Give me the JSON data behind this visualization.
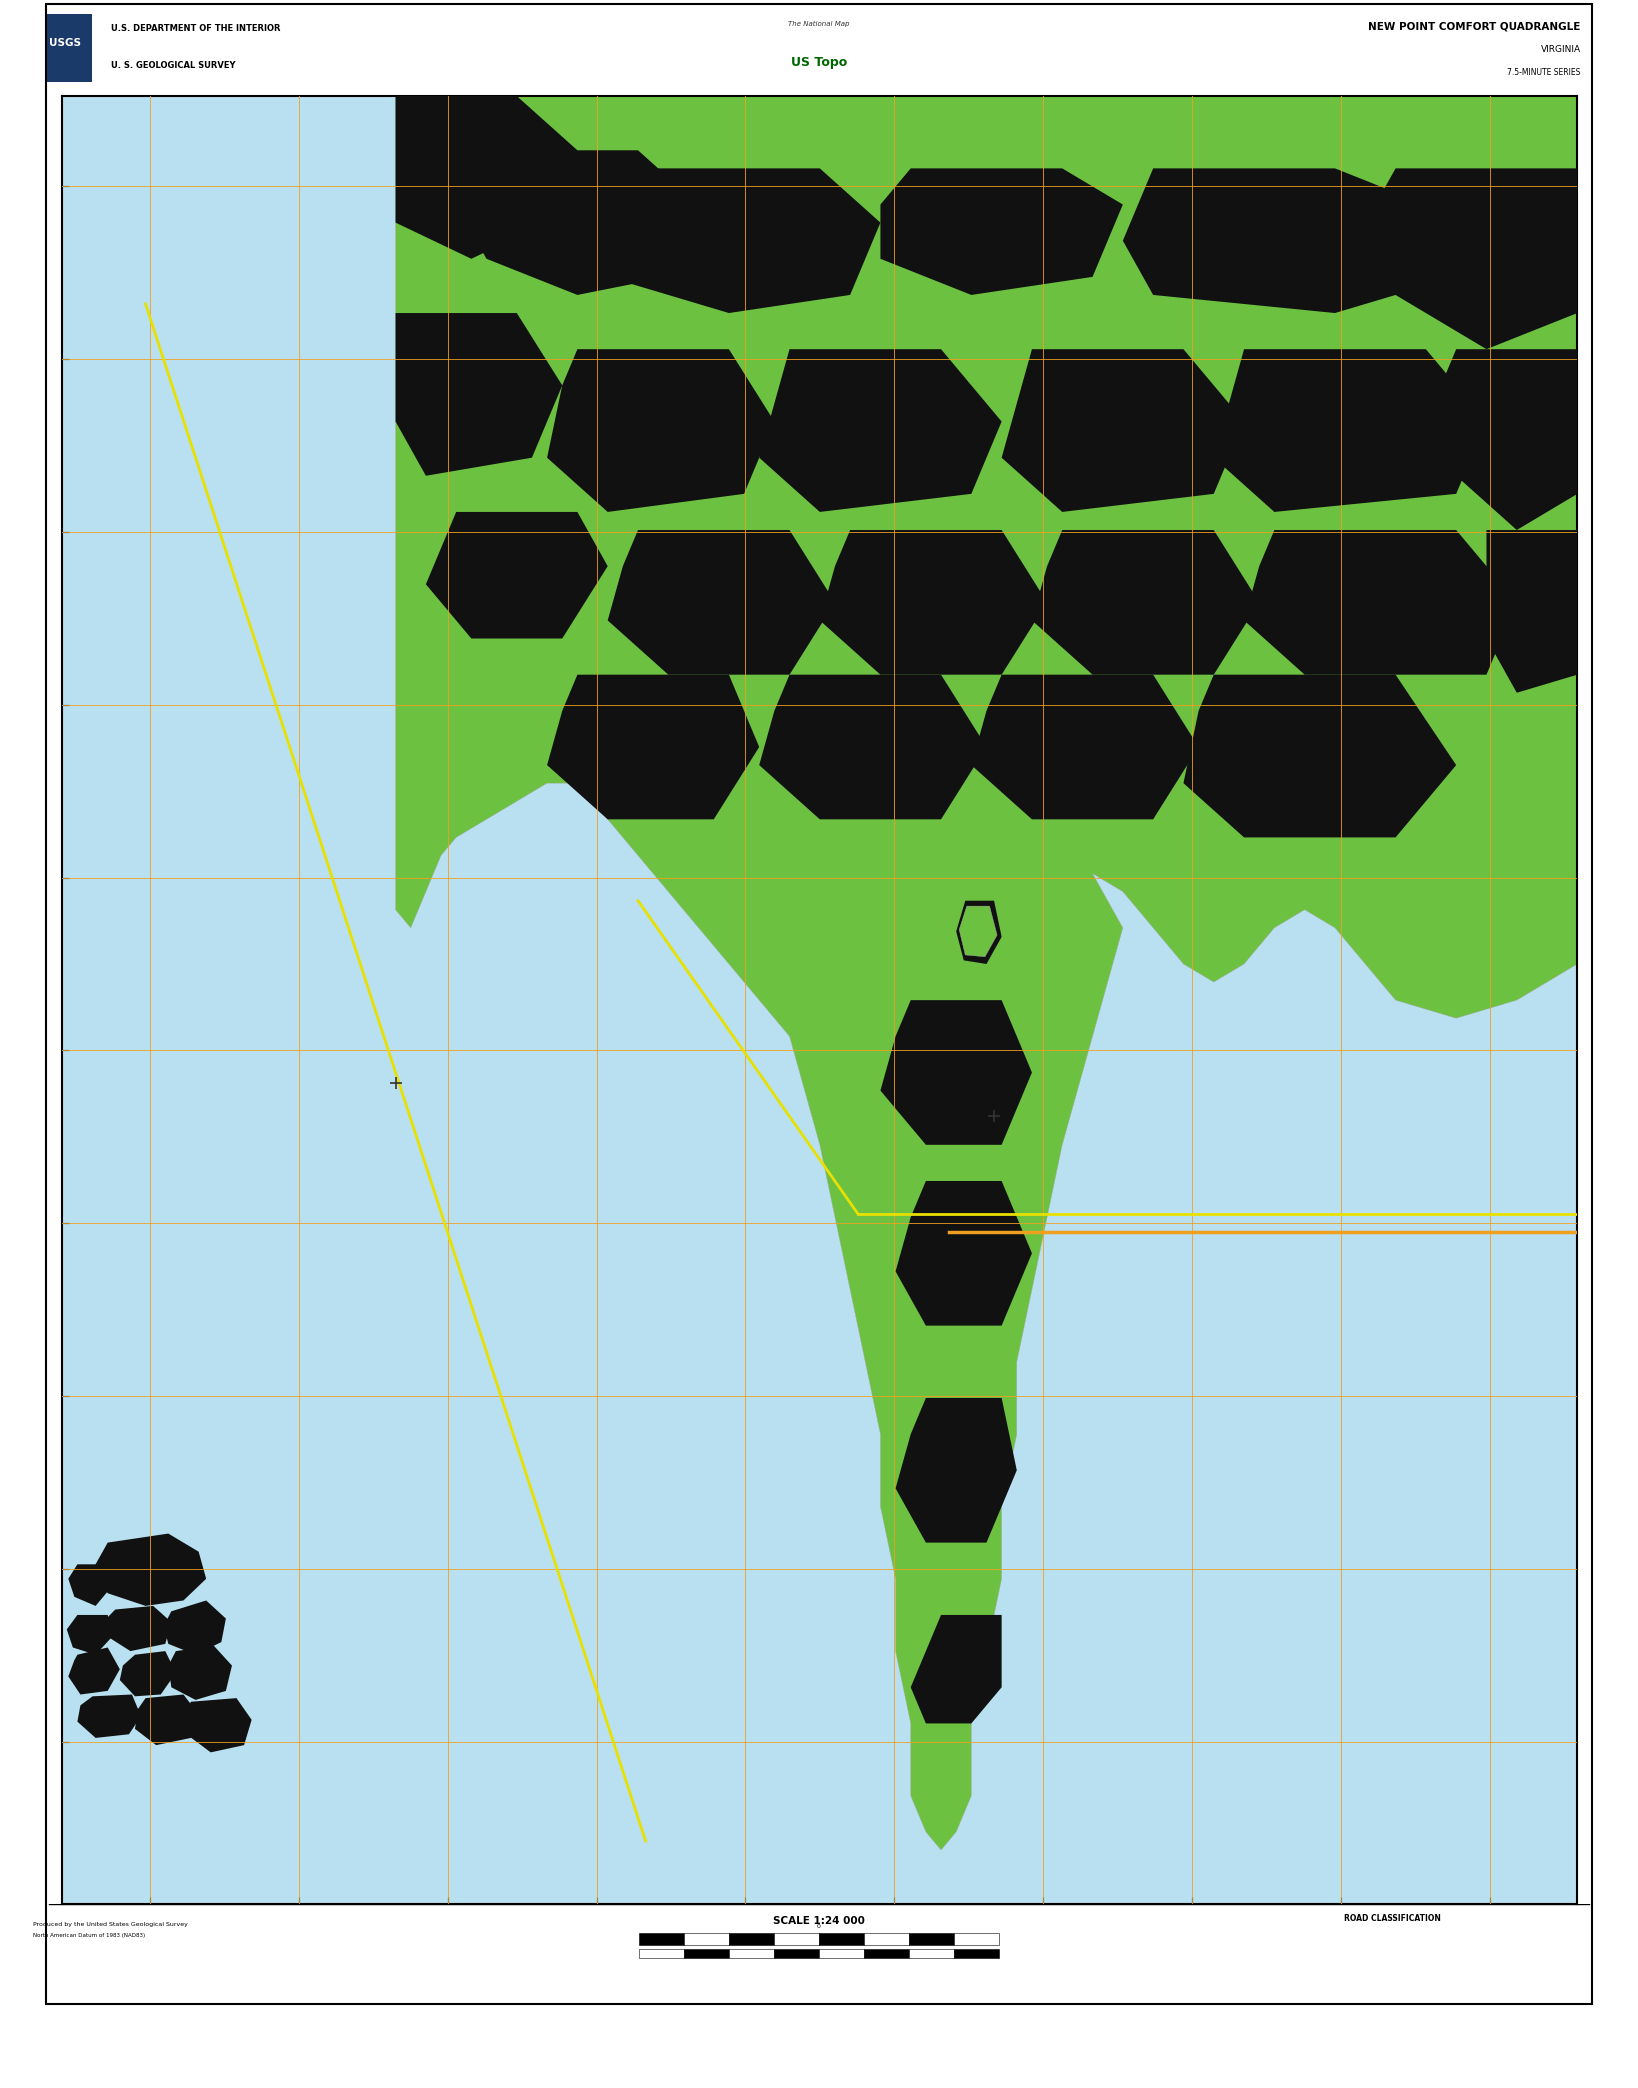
{
  "title_line1": "NEW POINT COMFORT QUADRANGLE",
  "title_line2": "VIRGINIA",
  "title_line3": "7.5-MINUTE SERIES",
  "header_left_line1": "U.S. DEPARTMENT OF THE INTERIOR",
  "header_left_line2": "U. S. GEOLOGICAL SURVEY",
  "scale_text": "SCALE 1:24 000",
  "map_bg_color": "#b8e0f0",
  "land_green": "#6dc141",
  "land_dark": "#111111",
  "land_outline": "#888888",
  "grid_orange": "#f0a020",
  "grid_yellow": "#e8e000",
  "white": "#ffffff",
  "black": "#000000",
  "fig_width": 16.38,
  "fig_height": 20.88,
  "map_l": 0.038,
  "map_r": 0.963,
  "map_b": 0.088,
  "map_t": 0.954,
  "header_b": 0.954,
  "header_t": 1.0,
  "footer_b": 0.042,
  "footer_t": 0.088,
  "blackbar_b": 0.0,
  "blackbar_t": 0.042
}
